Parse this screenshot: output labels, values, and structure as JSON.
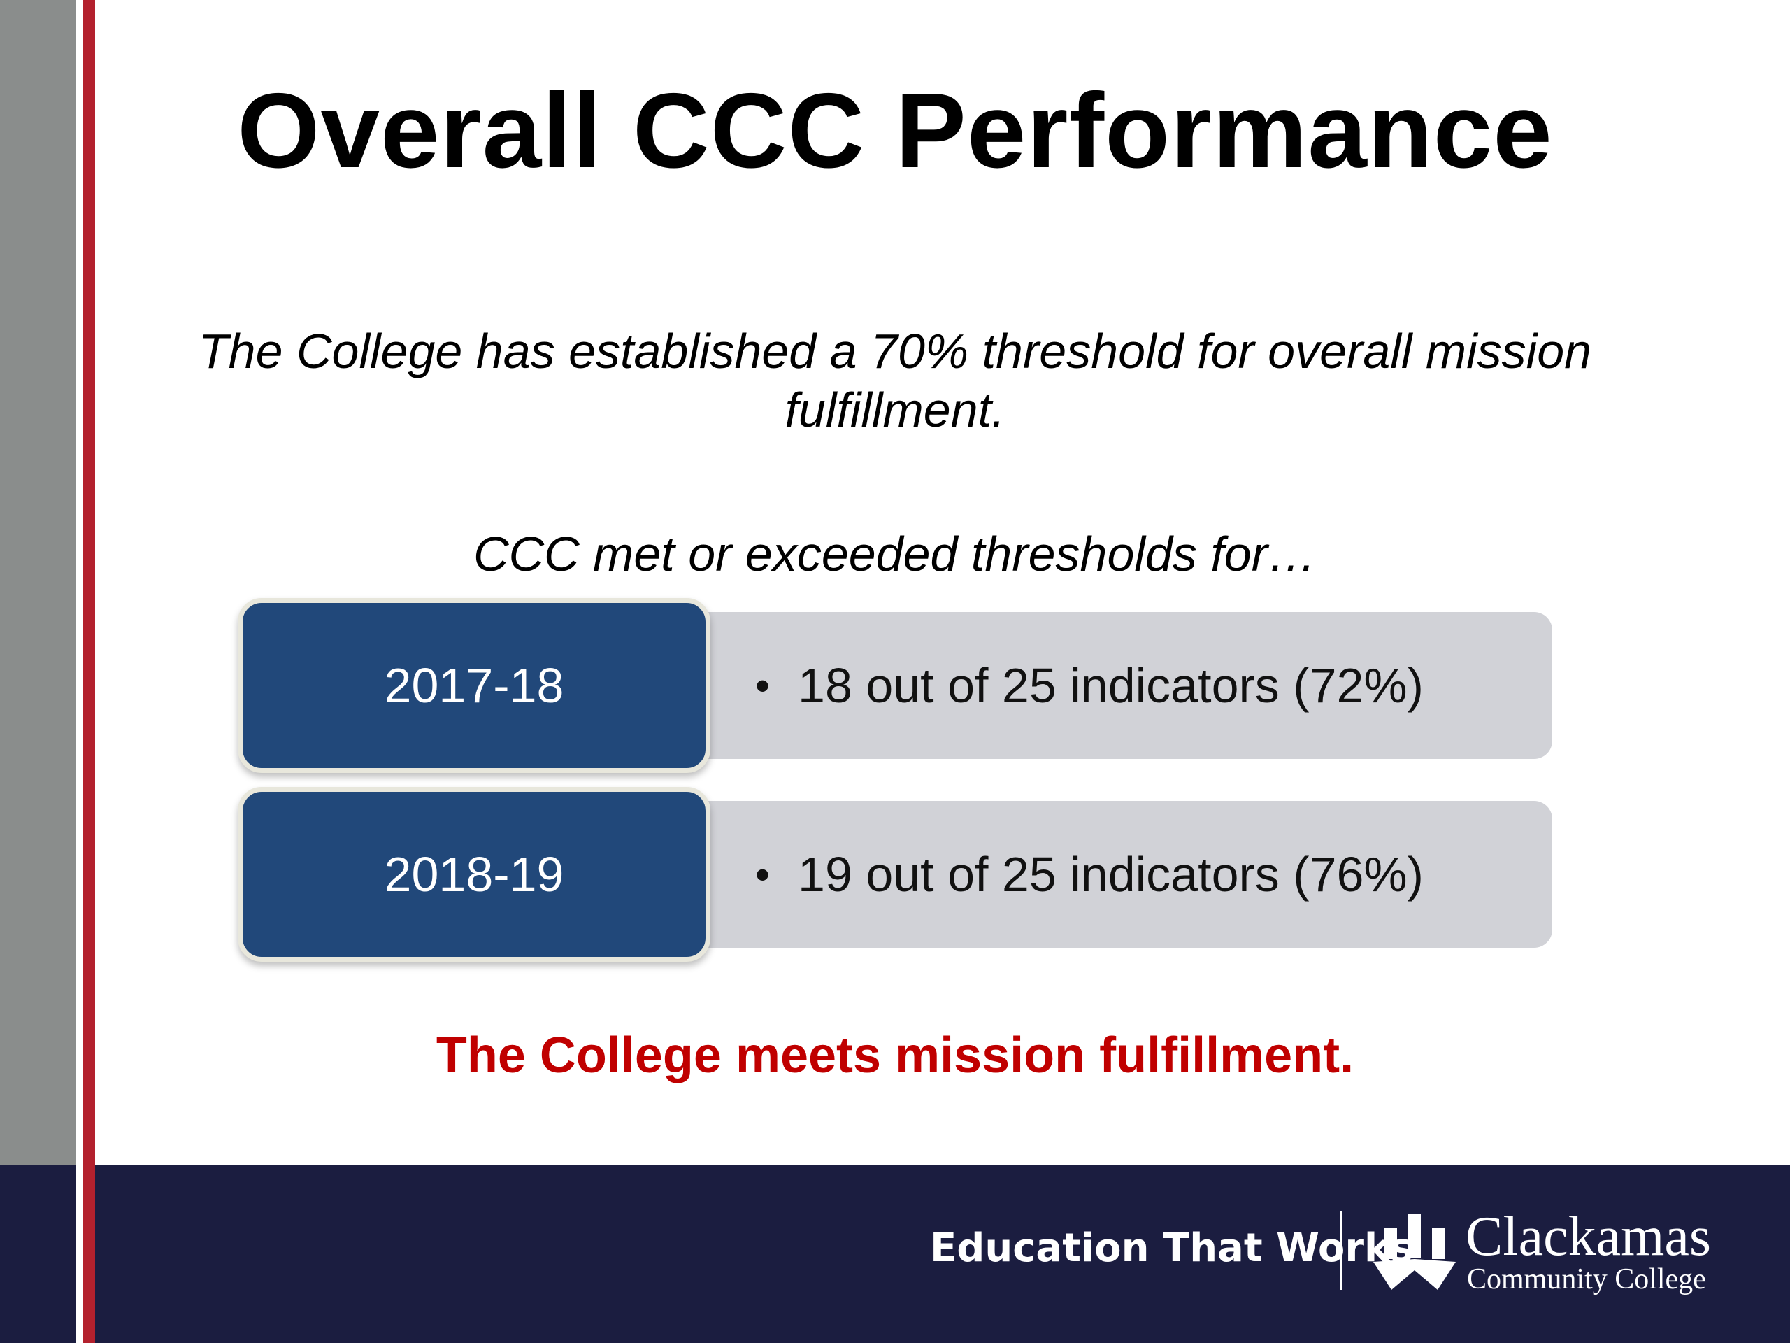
{
  "slide": {
    "title": "Overall CCC Performance",
    "subtitle": "The College has established a 70% threshold for overall mission fulfillment.",
    "lead": "CCC met or exceeded thresholds for…",
    "rows": [
      {
        "year": "2017-18",
        "text": "18 out of 25 indicators (72%)"
      },
      {
        "year": "2018-19",
        "text": "19 out of 25 indicators (76%)"
      }
    ],
    "bullet": "•",
    "conclusion": "The College meets mission fulfillment."
  },
  "footer": {
    "tagline": "Education That Works",
    "logo_name": "Clackamas",
    "logo_sub": "Community College"
  },
  "colors": {
    "title": "#000000",
    "year_box": "#21487a",
    "row_bg": "#d1d2d7",
    "conclusion": "#c00000",
    "footer_bg": "#1b1d40",
    "accent_red": "#b3212e",
    "accent_gray": "#8a8d8c"
  },
  "icons": {
    "logo": "clackamas-logo-icon"
  }
}
